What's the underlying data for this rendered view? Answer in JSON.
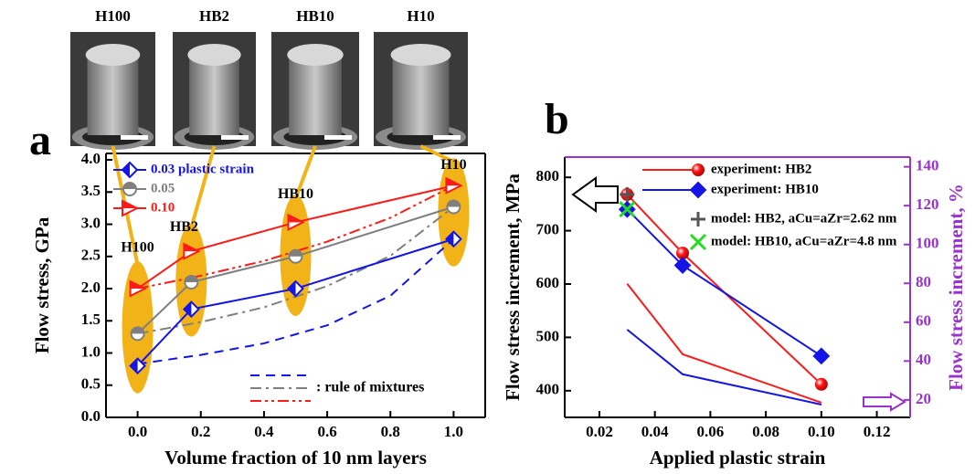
{
  "images": [
    {
      "label": "H100"
    },
    {
      "label": "HB2"
    },
    {
      "label": "HB10"
    },
    {
      "label": "H10"
    }
  ],
  "chart_data": [
    {
      "type": "line",
      "panel": "a",
      "x_label": "Volume fraction of 10 nm layers",
      "y_label": "Flow stress, GPa",
      "x": [
        0,
        0.17,
        0.5,
        1.0
      ],
      "point_labels": [
        "H100",
        "HB2",
        "HB10",
        "H10"
      ],
      "series": [
        {
          "name": "0.03 plastic strain",
          "color": "#1414e6",
          "marker": "diamond",
          "values": [
            0.8,
            1.68,
            2.0,
            2.77
          ]
        },
        {
          "name": "0.05",
          "color": "#7f7f7f",
          "marker": "circle",
          "values": [
            1.3,
            2.1,
            2.5,
            3.27
          ]
        },
        {
          "name": "0.10",
          "color": "#ff1a1a",
          "marker": "triangle",
          "values": [
            2.0,
            2.58,
            3.03,
            3.6
          ]
        }
      ],
      "mixture_label": ": rule of mixtures",
      "mixture_series": [
        {
          "color": "#1414e6",
          "dash": "10 7",
          "x": [
            0,
            0.2,
            0.4,
            0.6,
            0.8,
            1.0
          ],
          "values": [
            0.83,
            0.97,
            1.15,
            1.43,
            1.89,
            2.77
          ]
        },
        {
          "color": "#7f7f7f",
          "dash": "12 5 3 5",
          "x": [
            0,
            0.2,
            0.4,
            0.6,
            0.8,
            1.0
          ],
          "values": [
            1.3,
            1.48,
            1.71,
            2.04,
            2.51,
            3.27
          ]
        },
        {
          "color": "#ff1a1a",
          "dash": "12 4 3 4 3 4",
          "x": [
            0,
            0.2,
            0.4,
            0.6,
            0.8,
            1.0
          ],
          "values": [
            2.0,
            2.2,
            2.43,
            2.73,
            3.1,
            3.6
          ]
        }
      ],
      "xlim": [
        -0.1,
        1.1
      ],
      "ylim": [
        0,
        4.1
      ],
      "xticks": [
        {
          "value": 0,
          "label": "0.0"
        },
        0.2,
        0.4,
        0.6,
        0.8,
        {
          "value": 1,
          "label": "1.0"
        }
      ],
      "yticks": [
        {
          "value": 0,
          "label": "0.0"
        },
        0.5,
        {
          "value": 1,
          "label": "1.0"
        },
        1.5,
        {
          "value": 2,
          "label": "2.0"
        },
        2.5,
        {
          "value": 3,
          "label": "3.0"
        },
        3.5,
        {
          "value": 4,
          "label": "4.0"
        }
      ]
    },
    {
      "type": "line",
      "panel": "b",
      "x_label": "Applied plastic strain",
      "y_label": "Flow stress increment, MPa",
      "y2_label": "Flow stress increment, %",
      "y2_color": "#9933cc",
      "x": [
        0.03,
        0.05,
        0.1
      ],
      "series": [
        {
          "name": "experiment: HB2",
          "color": "#ff1a1a",
          "marker": "circle",
          "values": [
            768,
            658,
            412
          ]
        },
        {
          "name": "experiment: HB10",
          "color": "#1414e6",
          "marker": "diamond",
          "values": [
            740,
            635,
            465
          ]
        },
        {
          "color": "#ff1a1a",
          "axis": "y2",
          "values": [
            79.8,
            43.5,
            18.6
          ]
        },
        {
          "color": "#1414e6",
          "axis": "y2",
          "values": [
            56.2,
            33.2,
            17.6
          ]
        }
      ],
      "model_points": [
        {
          "name": "model: HB2, aCu=aZr=2.62 nm",
          "marker": "plus",
          "color": "#555555",
          "x": 0.03,
          "value": 768
        },
        {
          "name": "model: HB10, aCu=aZr=4.8 nm",
          "marker": "cross",
          "color": "#22dd22",
          "x": 0.03,
          "value": 740
        }
      ],
      "xlim": [
        0.0075,
        0.132
      ],
      "ylim": [
        350,
        838
      ],
      "y2lim": [
        11,
        145
      ],
      "xticks": [
        0.02,
        0.04,
        0.06,
        0.08,
        {
          "value": 0.1,
          "label": "0.10"
        },
        0.12
      ],
      "yticks": [
        400,
        500,
        600,
        700,
        800
      ],
      "y2ticks": [
        20,
        40,
        60,
        80,
        100,
        120,
        140
      ]
    }
  ]
}
